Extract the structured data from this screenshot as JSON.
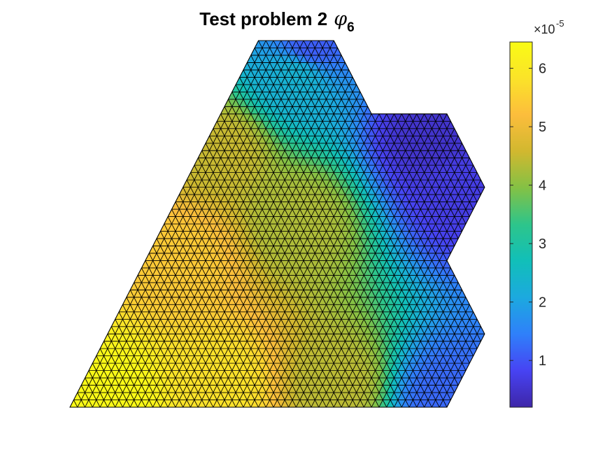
{
  "chart_data": {
    "type": "heatmap",
    "plot_kind": "triangulated surface (trisurf), viewed from above",
    "title": {
      "text": "Test problem 2",
      "symbol": "φ",
      "subscript": "6"
    },
    "colormap": "parula",
    "colormap_stops": [
      "#3e26a8",
      "#4743f3",
      "#2f80fa",
      "#1ca9df",
      "#11bfb9",
      "#2dc58b",
      "#83c145",
      "#d1b82f",
      "#fcbd3c",
      "#fbe329",
      "#f9fb15"
    ],
    "edge_color": "#000000",
    "color_range": [
      0.2,
      6.45
    ],
    "colorbar": {
      "exponent_label": "×10",
      "exponent": "-5",
      "ticks": [
        1,
        2,
        3,
        4,
        5,
        6
      ],
      "tick_labels": [
        "1",
        "2",
        "3",
        "4",
        "5",
        "6"
      ],
      "position": "right"
    },
    "domain_outline": [
      [
        0,
        0
      ],
      [
        5,
        0
      ],
      [
        5.5,
        1
      ],
      [
        5,
        2
      ],
      [
        5.5,
        3
      ],
      [
        5,
        4
      ],
      [
        4,
        4
      ],
      [
        3.5,
        5
      ],
      [
        2.5,
        5
      ]
    ],
    "mesh_subdivisions_per_unit": 10,
    "field_samples": {
      "description": "approximate values (x1e-5) at domain points",
      "points": [
        {
          "x": 0.5,
          "y": 0.1,
          "value": 6.4
        },
        {
          "x": 2.0,
          "y": 0.3,
          "value": 5.8
        },
        {
          "x": 3.5,
          "y": 0.3,
          "value": 4.4
        },
        {
          "x": 5.0,
          "y": 0.1,
          "value": 1.2
        },
        {
          "x": 1.5,
          "y": 2.0,
          "value": 5.4
        },
        {
          "x": 3.0,
          "y": 2.5,
          "value": 4.3
        },
        {
          "x": 5.2,
          "y": 3.0,
          "value": 0.7
        },
        {
          "x": 2.0,
          "y": 3.5,
          "value": 4.5
        },
        {
          "x": 3.0,
          "y": 4.5,
          "value": 2.3
        },
        {
          "x": 3.2,
          "y": 4.95,
          "value": 1.1
        },
        {
          "x": 4.8,
          "y": 3.7,
          "value": 0.5
        }
      ]
    },
    "xlabel": "",
    "ylabel": "",
    "grid": false
  }
}
